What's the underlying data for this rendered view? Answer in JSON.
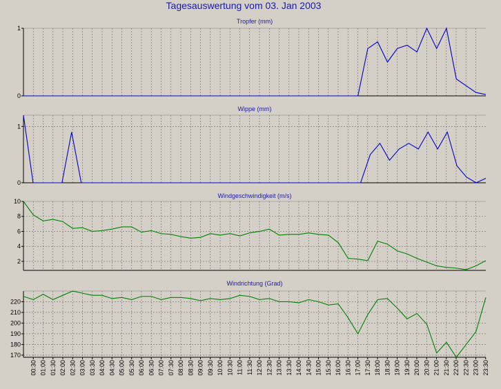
{
  "page": {
    "title": "Tagesauswertung vom 03. Jan 2003"
  },
  "x_tick_labels": [
    "00:30",
    "01:00",
    "01:30",
    "02:00",
    "02:30",
    "03:00",
    "03:30",
    "04:00",
    "04:30",
    "05:00",
    "05:30",
    "06:00",
    "06:30",
    "07:00",
    "07:30",
    "08:00",
    "08:30",
    "09:00",
    "09:30",
    "10:00",
    "10:30",
    "11:00",
    "11:30",
    "12:00",
    "12:30",
    "13:00",
    "13:30",
    "14:00",
    "14:30",
    "15:00",
    "15:30",
    "16:00",
    "16:30",
    "17:00",
    "17:30",
    "18:00",
    "18:30",
    "19:00",
    "19:30",
    "20:00",
    "20:30",
    "21:00",
    "21:30",
    "22:00",
    "22:30",
    "23:00",
    "23:30"
  ],
  "colors": {
    "blue_series": "#0000c8",
    "green_series": "#008000",
    "title": "#1a1aa6",
    "panel_bg": "#d4d0c8"
  },
  "chart_data": [
    {
      "type": "line",
      "title": "Tropfer (mm)",
      "ylim": [
        0,
        1
      ],
      "yticks": [
        "0",
        "1"
      ],
      "grid": true,
      "series": [
        {
          "values": [
            0,
            0,
            0,
            0,
            0,
            0,
            0,
            0,
            0,
            0,
            0,
            0,
            0,
            0,
            0,
            0,
            0,
            0,
            0,
            0,
            0,
            0,
            0,
            0,
            0,
            0,
            0,
            0,
            0,
            0,
            0,
            0,
            0,
            0,
            0,
            0.7,
            0.8,
            0.5,
            0.7,
            0.75,
            0.65,
            1.0,
            0.7,
            1.0,
            0.25,
            0.15,
            0.05,
            0.02
          ]
        }
      ]
    },
    {
      "type": "line",
      "title": "Wippe (mm)",
      "ylim": [
        0,
        1.2
      ],
      "yticks": [
        "0",
        "1"
      ],
      "grid": true,
      "series": [
        {
          "values": [
            1.2,
            0,
            0,
            0,
            0,
            0.9,
            0,
            0,
            0,
            0,
            0,
            0,
            0,
            0,
            0,
            0,
            0,
            0,
            0,
            0,
            0,
            0,
            0,
            0,
            0,
            0,
            0,
            0,
            0,
            0,
            0,
            0,
            0,
            0,
            0,
            0,
            0.5,
            0.7,
            0.4,
            0.6,
            0.7,
            0.6,
            0.9,
            0.6,
            0.9,
            0.3,
            0.1,
            0.0,
            0.08
          ]
        }
      ]
    },
    {
      "type": "line",
      "title": "Windgeschwindigkeit (m/s)",
      "ylim": [
        0.8,
        10
      ],
      "yticks": [
        "2",
        "4",
        "6",
        "8",
        "10"
      ],
      "grid": true,
      "series": [
        {
          "values": [
            10,
            8.2,
            7.4,
            7.6,
            7.3,
            6.4,
            6.5,
            6.0,
            6.1,
            6.3,
            6.6,
            6.6,
            5.9,
            6.1,
            5.7,
            5.6,
            5.3,
            5.1,
            5.2,
            5.7,
            5.5,
            5.7,
            5.4,
            5.8,
            6.0,
            6.3,
            5.5,
            5.6,
            5.6,
            5.8,
            5.6,
            5.5,
            4.5,
            2.4,
            2.3,
            2.1,
            4.7,
            4.3,
            3.4,
            3.0,
            2.4,
            1.9,
            1.4,
            1.2,
            1.1,
            0.9,
            1.4,
            2.1
          ]
        }
      ]
    },
    {
      "type": "line",
      "title": "Windrichtung (Grad)",
      "ylim": [
        168,
        230
      ],
      "yticks": [
        "170",
        "180",
        "190",
        "200",
        "210",
        "220"
      ],
      "grid": true,
      "series": [
        {
          "values": [
            225,
            222,
            227,
            222,
            226,
            230,
            228,
            226,
            226,
            223,
            224,
            222,
            225,
            225,
            222,
            224,
            224,
            223,
            221,
            223,
            222,
            223,
            226,
            225,
            222,
            223,
            220,
            220,
            219,
            222,
            220,
            217,
            218,
            205,
            190,
            208,
            222,
            223,
            214,
            204,
            209,
            199,
            172,
            182,
            168,
            180,
            192,
            224
          ]
        }
      ]
    }
  ]
}
